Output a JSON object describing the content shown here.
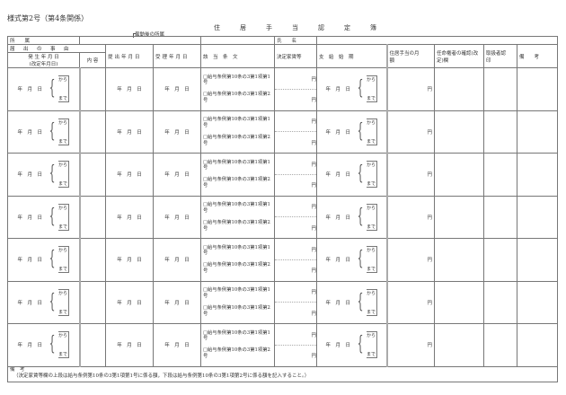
{
  "form_no": "様式第2号（第4条関係）",
  "title": "住居手当認定簿",
  "dest_label": "異動後の所属",
  "header": {
    "affiliation": "所　　属",
    "name": "氏　　名",
    "reason": "届　出　の　事　由",
    "occur_date": "発 生 年 月 日",
    "occur_date_sub": "(改定年月日)",
    "content": "内 容",
    "submit_date": "提出年月日",
    "receipt_date": "受理年月日",
    "clause": "該　当　条　文",
    "rent": "決定家賃等",
    "start": "支　給　始　期",
    "monthly": "住居手当の月　　　額",
    "appointer": "任命権者の確認(改定)欄",
    "handler": "取扱者認　　印",
    "remarks": "備　　考"
  },
  "row_template": {
    "date": "年　月　日",
    "from": "から",
    "to": "まで",
    "clause1": "□給与条例第10条の3第1項第1号",
    "clause2": "□給与条例第10条の3第1項第2号",
    "yen": "円"
  },
  "row_count": 7,
  "notes": {
    "title": "備　考",
    "text": "（決定家賃等欄の上段は給与条例第10条の3第1項第1号に係る額，下段は給与条例第10条の3第1項第2号に係る額を記入すること。）"
  }
}
